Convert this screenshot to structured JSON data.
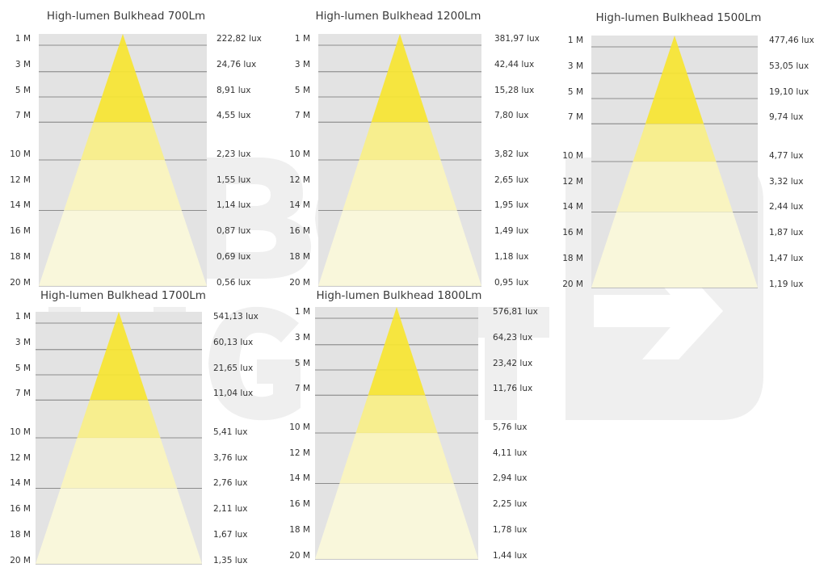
{
  "colors": {
    "background": "#ffffff",
    "chart_bg": "#e3e3e3",
    "line": "#6f6f6f",
    "beam_band_1": "#f7e531",
    "beam_band_2": "#f9ef87",
    "beam_band_3": "#fbf5bd",
    "beam_band_4": "#fbf8da",
    "text": "#333333",
    "watermark": "#d9d9d9"
  },
  "distance_labels": [
    "1 M",
    "3 M",
    "5 M",
    "7 M",
    "10 M",
    "12 M",
    "14 M",
    "16 M",
    "18 M",
    "20 M"
  ],
  "distances_m": [
    1,
    3,
    5,
    7,
    10,
    12,
    14,
    16,
    18,
    20
  ],
  "panels": [
    {
      "title": "High-lumen Bulkhead 700Lm",
      "lux": [
        "222,82 lux",
        "24,76 lux",
        "8,91 lux",
        "4,55 lux",
        "2,23 lux",
        "1,55 lux",
        "1,14 lux",
        "0,87 lux",
        "0,69 lux",
        "0,56 lux"
      ]
    },
    {
      "title": "High-lumen Bulkhead 1200Lm",
      "lux": [
        "381,97 lux",
        "42,44 lux",
        "15,28 lux",
        "7,80 lux",
        "3,82 lux",
        "2,65 lux",
        "1,95 lux",
        "1,49 lux",
        "1,18 lux",
        "0,95 lux"
      ]
    },
    {
      "title": "High-lumen Bulkhead 1500Lm",
      "lux": [
        "477,46 lux",
        "53,05 lux",
        "19,10 lux",
        "9,74 lux",
        "4,77 lux",
        "3,32 lux",
        "2,44 lux",
        "1,87 lux",
        "1,47 lux",
        "1,19 lux"
      ]
    },
    {
      "title": "High-lumen Bulkhead 1700Lm",
      "lux": [
        "541,13 lux",
        "60,13 lux",
        "21,65 lux",
        "11,04 lux",
        "5,41 lux",
        "3,76 lux",
        "2,76 lux",
        "2,11 lux",
        "1,67 lux",
        "1,35 lux"
      ]
    },
    {
      "title": "High-lumen Bulkhead 1800Lm",
      "lux": [
        "576,81 lux",
        "64,23 lux",
        "23,42 lux",
        "11,76 lux",
        "5,76 lux",
        "4,11 lux",
        "2,94 lux",
        "2,25 lux",
        "1,78 lux",
        "1,44 lux"
      ]
    }
  ]
}
